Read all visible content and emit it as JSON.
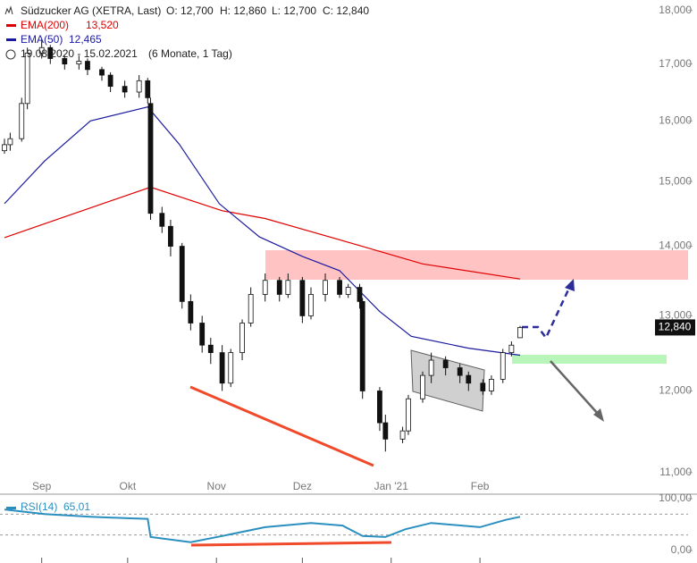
{
  "chart_data": [
    {
      "type": "candlestick",
      "title": "Südzucker AG (XETRA, Last)",
      "ohlc_labels": [
        "O: 12,700",
        "H: 12,860",
        "L: 12,700",
        "C: 12,840"
      ],
      "range_text": "19.08.2020 - 15.02.2021",
      "range_note": "(6 Monate, 1 Tag)",
      "last_price": "12,840",
      "log_scale": true,
      "xlim": [
        "2020-08-19",
        "2021-02-15"
      ],
      "xticks": [
        {
          "value": "2020-09-01",
          "label": "Sep"
        },
        {
          "value": "2020-10-01",
          "label": "Okt"
        },
        {
          "value": "2020-11-01",
          "label": "Nov"
        },
        {
          "value": "2020-12-01",
          "label": "Dez"
        },
        {
          "value": "2021-01-01",
          "label": "Jan '21"
        },
        {
          "value": "2021-02-01",
          "label": "Feb"
        }
      ],
      "ylim": [
        10750,
        18200
      ],
      "yticks": [
        {
          "value": 11000,
          "label": "11,000"
        },
        {
          "value": 12000,
          "label": "12,000"
        },
        {
          "value": 13000,
          "label": "13,000"
        },
        {
          "value": 14000,
          "label": "14,000"
        },
        {
          "value": 15000,
          "label": "15,000"
        },
        {
          "value": 16000,
          "label": "16,000"
        },
        {
          "value": 17000,
          "label": "17,000"
        },
        {
          "value": 18000,
          "label": "18,000"
        }
      ],
      "x": [
        "2020-08-19",
        "2020-08-21",
        "2020-08-25",
        "2020-08-27",
        "2020-09-01",
        "2020-09-04",
        "2020-09-09",
        "2020-09-14",
        "2020-09-17",
        "2020-09-22",
        "2020-09-25",
        "2020-09-30",
        "2020-10-05",
        "2020-10-08",
        "2020-10-09",
        "2020-10-13",
        "2020-10-16",
        "2020-10-20",
        "2020-10-23",
        "2020-10-27",
        "2020-10-30",
        "2020-11-03",
        "2020-11-06",
        "2020-11-10",
        "2020-11-13",
        "2020-11-18",
        "2020-11-23",
        "2020-11-26",
        "2020-12-01",
        "2020-12-04",
        "2020-12-09",
        "2020-12-14",
        "2020-12-17",
        "2020-12-21",
        "2020-12-22",
        "2020-12-28",
        "2020-12-30",
        "2021-01-05",
        "2021-01-07",
        "2021-01-12",
        "2021-01-15",
        "2021-01-20",
        "2021-01-25",
        "2021-01-28",
        "2021-02-02",
        "2021-02-05",
        "2021-02-09",
        "2021-02-12",
        "2021-02-15"
      ],
      "open": [
        15500,
        15600,
        15700,
        16300,
        17200,
        17300,
        17100,
        17000,
        17050,
        16900,
        16800,
        16600,
        16500,
        16700,
        16300,
        14500,
        14300,
        14000,
        13200,
        12900,
        12600,
        12500,
        12100,
        12500,
        12900,
        13300,
        13500,
        13300,
        13500,
        13000,
        13300,
        13500,
        13300,
        13400,
        13200,
        12000,
        11600,
        11400,
        11500,
        11900,
        12200,
        12400,
        12300,
        12200,
        12100,
        12000,
        12150,
        12500,
        12700
      ],
      "high": [
        15700,
        15800,
        16400,
        17300,
        17450,
        17350,
        17150,
        17150,
        17100,
        16950,
        16850,
        16700,
        16800,
        16750,
        16400,
        14600,
        14400,
        14050,
        13300,
        13000,
        12700,
        12600,
        12550,
        12950,
        13400,
        13600,
        13550,
        13600,
        13550,
        13400,
        13600,
        13550,
        13450,
        13450,
        13250,
        12050,
        11700,
        11550,
        11950,
        12250,
        12500,
        12450,
        12350,
        12250,
        12150,
        12200,
        12550,
        12650,
        12860
      ],
      "low": [
        15450,
        15500,
        15650,
        16200,
        17100,
        17000,
        16900,
        16900,
        16800,
        16700,
        16500,
        16400,
        16400,
        16300,
        14400,
        14200,
        13850,
        13100,
        12800,
        12500,
        12350,
        12000,
        12050,
        12400,
        12850,
        13200,
        13200,
        13250,
        12900,
        12950,
        13200,
        13250,
        13250,
        13100,
        11900,
        11500,
        11250,
        11350,
        11450,
        11850,
        12100,
        12200,
        12100,
        12000,
        11950,
        11950,
        12100,
        12450,
        12700
      ],
      "close": [
        15600,
        15700,
        16300,
        17200,
        17300,
        17100,
        17000,
        17050,
        16900,
        16800,
        16600,
        16500,
        16700,
        16400,
        14500,
        14300,
        14000,
        13200,
        12900,
        12600,
        12500,
        12100,
        12500,
        12900,
        13300,
        13500,
        13300,
        13500,
        13000,
        13300,
        13500,
        13300,
        13400,
        13200,
        12000,
        11600,
        11400,
        11500,
        11900,
        12200,
        12400,
        12300,
        12200,
        12100,
        12000,
        12150,
        12500,
        12600,
        12840
      ],
      "series": [
        {
          "name": "EMA(200)",
          "color": "#e00000",
          "value_label": "13,520",
          "x": [
            "2020-08-19",
            "2020-10-09",
            "2020-11-03",
            "2020-11-18",
            "2020-12-21",
            "2021-01-12",
            "2021-02-15"
          ],
          "values": [
            14130,
            14910,
            14540,
            14420,
            14010,
            13740,
            13520
          ]
        },
        {
          "name": "EMA(50)",
          "color": "#1a1aa0",
          "value_label": "12,465",
          "x": [
            "2020-08-19",
            "2020-09-02",
            "2020-09-18",
            "2020-10-08",
            "2020-10-19",
            "2020-11-02",
            "2020-11-16",
            "2020-12-01",
            "2020-12-14",
            "2020-12-28",
            "2021-01-08",
            "2021-01-28",
            "2021-02-15"
          ],
          "values": [
            14650,
            15330,
            16000,
            16240,
            15610,
            14650,
            14140,
            13850,
            13640,
            13060,
            12720,
            12560,
            12465
          ]
        }
      ]
    },
    {
      "type": "line",
      "name": "RSI(14)",
      "value_label": "65,01",
      "color": "#2a8fbf",
      "xlim": [
        "2020-08-19",
        "2021-02-15"
      ],
      "ylim": [
        -24,
        105
      ],
      "yticks": [
        {
          "value": 0,
          "label": "0,00"
        },
        {
          "value": 100,
          "label": "100,00"
        }
      ],
      "reference_lines": [
        70,
        30
      ],
      "x": [
        "2020-08-19",
        "2020-09-02",
        "2020-09-18",
        "2020-10-02",
        "2020-10-08",
        "2020-10-09",
        "2020-10-23",
        "2020-11-03",
        "2020-11-18",
        "2020-12-04",
        "2020-12-15",
        "2020-12-22",
        "2020-12-30",
        "2021-01-06",
        "2021-01-15",
        "2021-02-01",
        "2021-02-10",
        "2021-02-15"
      ],
      "values": [
        79,
        70,
        65,
        62,
        61,
        26,
        16,
        28,
        45,
        53,
        48,
        28,
        26,
        41,
        53,
        45,
        59,
        65.01
      ]
    }
  ]
}
